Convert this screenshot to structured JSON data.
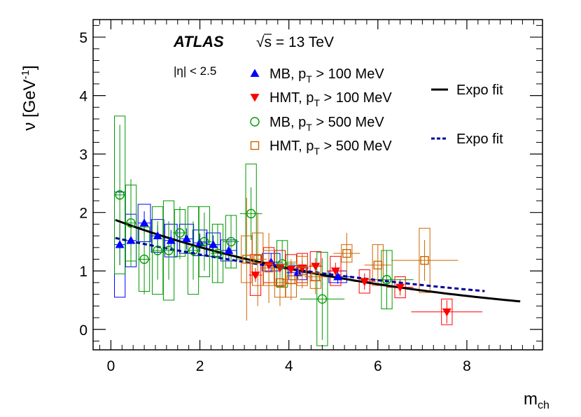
{
  "chart_data": {
    "type": "scatter",
    "title": "",
    "xlabel": "m_ch",
    "ylabel": "ν [GeV⁻¹]",
    "xlim": [
      -0.4,
      9.7
    ],
    "ylim": [
      -0.35,
      5.3
    ],
    "xticks": [
      0,
      2,
      4,
      6,
      8
    ],
    "yticks": [
      0,
      1,
      2,
      3,
      4,
      5
    ],
    "annotations": {
      "experiment": "ATLAS",
      "energy": "√s = 13 TeV",
      "eta_cut": "|η| < 2.5"
    },
    "colors": {
      "mb100": "#0000ff",
      "hmt100": "#ff0000",
      "mb500": "#009900",
      "hmt500": "#cc6600",
      "fit_solid": "#000000",
      "fit_dashed": "#000099"
    },
    "series": [
      {
        "name": "MB, p_T > 100 MeV",
        "legend": {
          "main": "MB, p",
          "sub": "T",
          "rest": " > 100 MeV"
        },
        "marker": "triangle-up",
        "color": "#0000ff",
        "points": [
          {
            "x": 0.2,
            "y": 1.45,
            "xerr": 0.12,
            "yerr": 0.35,
            "syst": 0.9,
            "sx": 0.12
          },
          {
            "x": 0.45,
            "y": 1.52,
            "xerr": 0.12,
            "yerr": 0.25,
            "syst": 0.45,
            "sx": 0.12
          },
          {
            "x": 0.75,
            "y": 1.82,
            "xerr": 0.14,
            "yerr": 0.2,
            "syst": 0.32,
            "sx": 0.14
          },
          {
            "x": 1.05,
            "y": 1.6,
            "xerr": 0.14,
            "yerr": 0.18,
            "syst": 0.28,
            "sx": 0.14
          },
          {
            "x": 1.35,
            "y": 1.52,
            "xerr": 0.14,
            "yerr": 0.18,
            "syst": 0.28,
            "sx": 0.14
          },
          {
            "x": 1.7,
            "y": 1.55,
            "xerr": 0.16,
            "yerr": 0.18,
            "syst": 0.25,
            "sx": 0.16
          },
          {
            "x": 2.0,
            "y": 1.48,
            "xerr": 0.16,
            "yerr": 0.16,
            "syst": 0.22,
            "sx": 0.16
          },
          {
            "x": 2.3,
            "y": 1.45,
            "xerr": 0.16,
            "yerr": 0.16,
            "syst": 0.2,
            "sx": 0.16
          },
          {
            "x": 2.65,
            "y": 1.35,
            "xerr": 0.18,
            "yerr": 0.16,
            "syst": 0.18,
            "sx": 0.18
          },
          {
            "x": 3.6,
            "y": 1.15,
            "xerr": 0.25,
            "yerr": 0.15,
            "syst": 0.15,
            "sx": 0.2
          },
          {
            "x": 4.2,
            "y": 0.97,
            "xerr": 0.25,
            "yerr": 0.12,
            "syst": 0.12,
            "sx": 0.2
          },
          {
            "x": 5.1,
            "y": 0.9,
            "xerr": 0.3,
            "yerr": 0.12,
            "syst": 0.1,
            "sx": 0.2
          }
        ]
      },
      {
        "name": "HMT, p_T > 100 MeV",
        "legend": {
          "main": "HMT, p",
          "sub": "T",
          "rest": " > 100 MeV"
        },
        "marker": "triangle-down",
        "color": "#ff0000",
        "points": [
          {
            "x": 3.25,
            "y": 0.93,
            "xerr": 0.15,
            "yerr": 0.12,
            "syst": 0.35,
            "sx": 0.12
          },
          {
            "x": 3.55,
            "y": 1.1,
            "xerr": 0.15,
            "yerr": 0.12,
            "syst": 0.3,
            "sx": 0.12
          },
          {
            "x": 3.8,
            "y": 1.05,
            "xerr": 0.15,
            "yerr": 0.12,
            "syst": 0.3,
            "sx": 0.12
          },
          {
            "x": 4.05,
            "y": 1.03,
            "xerr": 0.15,
            "yerr": 0.12,
            "syst": 0.25,
            "sx": 0.12
          },
          {
            "x": 4.3,
            "y": 1.05,
            "xerr": 0.15,
            "yerr": 0.12,
            "syst": 0.25,
            "sx": 0.12
          },
          {
            "x": 4.6,
            "y": 1.08,
            "xerr": 0.15,
            "yerr": 0.14,
            "syst": 0.25,
            "sx": 0.12
          },
          {
            "x": 5.05,
            "y": 1.0,
            "xerr": 0.2,
            "yerr": 0.14,
            "syst": 0.25,
            "sx": 0.12
          },
          {
            "x": 5.7,
            "y": 0.82,
            "xerr": 0.25,
            "yerr": 0.14,
            "syst": 0.2,
            "sx": 0.12
          },
          {
            "x": 6.5,
            "y": 0.72,
            "xerr": 0.3,
            "yerr": 0.14,
            "syst": 0.18,
            "sx": 0.12
          },
          {
            "x": 7.55,
            "y": 0.3,
            "xerr": 0.8,
            "yerr": 0.2,
            "syst": 0.22,
            "sx": 0.12
          }
        ]
      },
      {
        "name": "MB, p_T > 500 MeV",
        "legend": {
          "main": "MB, p",
          "sub": "T",
          "rest": " > 500 MeV"
        },
        "marker": "circle-open",
        "color": "#009900",
        "points": [
          {
            "x": 0.2,
            "y": 2.3,
            "xerr": 0.12,
            "yerr": 1.2,
            "syst": 1.35,
            "sx": 0.12
          },
          {
            "x": 0.45,
            "y": 1.82,
            "xerr": 0.12,
            "yerr": 0.75,
            "syst": 0.65,
            "sx": 0.12
          },
          {
            "x": 0.75,
            "y": 1.2,
            "xerr": 0.14,
            "yerr": 0.6,
            "syst": 0.55,
            "sx": 0.12
          },
          {
            "x": 1.05,
            "y": 1.35,
            "xerr": 0.14,
            "yerr": 0.5,
            "syst": 0.75,
            "sx": 0.12
          },
          {
            "x": 1.3,
            "y": 1.35,
            "xerr": 0.14,
            "yerr": 0.5,
            "syst": 0.85,
            "sx": 0.12
          },
          {
            "x": 1.55,
            "y": 1.65,
            "xerr": 0.16,
            "yerr": 0.45,
            "syst": 0.4,
            "sx": 0.12
          },
          {
            "x": 1.85,
            "y": 1.35,
            "xerr": 0.16,
            "yerr": 0.5,
            "syst": 0.75,
            "sx": 0.12
          },
          {
            "x": 2.1,
            "y": 1.5,
            "xerr": 0.16,
            "yerr": 0.5,
            "syst": 0.6,
            "sx": 0.12
          },
          {
            "x": 2.4,
            "y": 1.3,
            "xerr": 0.16,
            "yerr": 0.5,
            "syst": 0.5,
            "sx": 0.12
          },
          {
            "x": 2.7,
            "y": 1.5,
            "xerr": 0.18,
            "yerr": 0.45,
            "syst": 0.45,
            "sx": 0.12
          },
          {
            "x": 3.15,
            "y": 1.98,
            "xerr": 0.25,
            "yerr": 0.45,
            "syst": 0.85,
            "sx": 0.12
          },
          {
            "x": 3.85,
            "y": 1.12,
            "xerr": 0.3,
            "yerr": 0.4,
            "syst": 0.4,
            "sx": 0.12
          },
          {
            "x": 4.75,
            "y": 0.52,
            "xerr": 0.5,
            "yerr": 0.7,
            "syst": 0.8,
            "sx": 0.12
          },
          {
            "x": 6.2,
            "y": 0.85,
            "xerr": 0.6,
            "yerr": 0.5,
            "syst": 0.5,
            "sx": 0.12
          }
        ]
      },
      {
        "name": "HMT, p_T > 500 MeV",
        "legend": {
          "main": "HMT, p",
          "sub": "T",
          "rest": " > 500 MeV"
        },
        "marker": "square-open",
        "color": "#cc6600",
        "points": [
          {
            "x": 3.05,
            "y": 1.2,
            "xerr": 0.2,
            "yerr": 1.05,
            "syst": 0.4,
            "sx": 0.12
          },
          {
            "x": 3.3,
            "y": 1.2,
            "xerr": 0.2,
            "yerr": 0.8,
            "syst": 0.45,
            "sx": 0.12
          },
          {
            "x": 3.55,
            "y": 1.05,
            "xerr": 0.2,
            "yerr": 0.6,
            "syst": 0.3,
            "sx": 0.12
          },
          {
            "x": 3.8,
            "y": 0.8,
            "xerr": 0.2,
            "yerr": 0.4,
            "syst": 0.25,
            "sx": 0.12
          },
          {
            "x": 4.05,
            "y": 0.85,
            "xerr": 0.2,
            "yerr": 0.35,
            "syst": 0.3,
            "sx": 0.12
          },
          {
            "x": 4.3,
            "y": 1.0,
            "xerr": 0.2,
            "yerr": 0.3,
            "syst": 0.25,
            "sx": 0.12
          },
          {
            "x": 4.6,
            "y": 0.9,
            "xerr": 0.25,
            "yerr": 0.3,
            "syst": 0.2,
            "sx": 0.12
          },
          {
            "x": 5.3,
            "y": 1.3,
            "xerr": 0.3,
            "yerr": 0.35,
            "syst": 0.15,
            "sx": 0.12
          },
          {
            "x": 6.0,
            "y": 1.1,
            "xerr": 0.3,
            "yerr": 0.35,
            "syst": 0.35,
            "sx": 0.12
          },
          {
            "x": 7.05,
            "y": 1.18,
            "xerr": 0.75,
            "yerr": 0.35,
            "syst": 0.55,
            "sx": 0.12
          }
        ]
      }
    ],
    "fits": [
      {
        "name": "Expo fit",
        "style": "solid",
        "color": "#000000",
        "a": 1.9,
        "b": 0.15,
        "x0": 0.1,
        "x1": 9.2
      },
      {
        "name": "Expo fit",
        "style": "dashed",
        "color": "#000099",
        "a": 1.58,
        "b": 0.105,
        "x0": 0.1,
        "x1": 8.4
      }
    ]
  }
}
